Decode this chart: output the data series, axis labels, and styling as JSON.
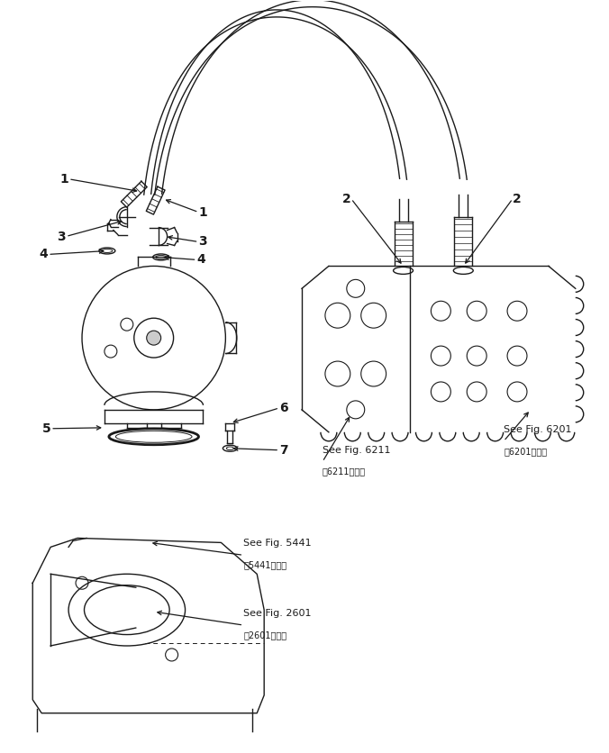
{
  "bg_color": "#ffffff",
  "line_color": "#1a1a1a",
  "fig_w": 6.76,
  "fig_h": 8.36,
  "dpi": 100,
  "xlim": [
    0,
    676
  ],
  "ylim": [
    0,
    836
  ]
}
